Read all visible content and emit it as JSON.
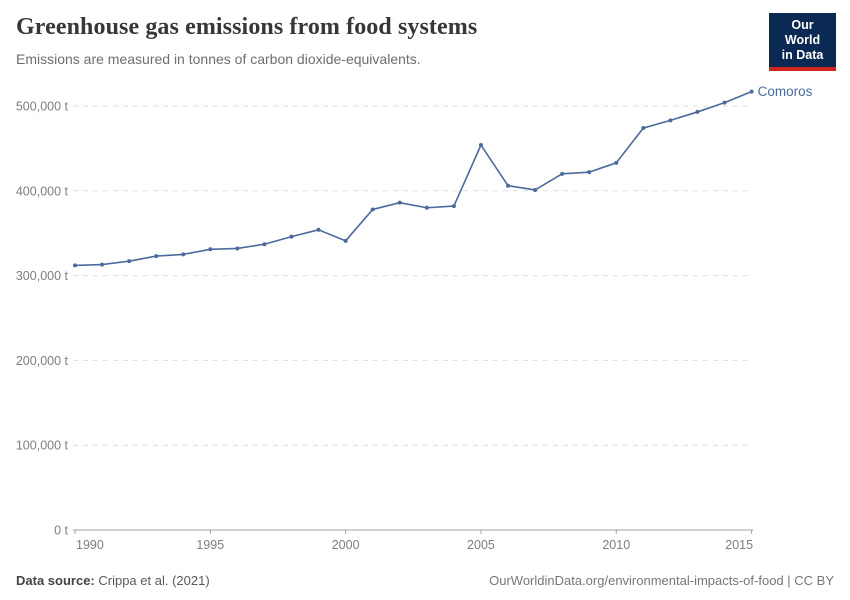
{
  "header": {
    "title": "Greenhouse gas emissions from food systems",
    "subtitle": "Emissions are measured in tonnes of carbon dioxide-equivalents.",
    "logo": {
      "line1": "Our World",
      "line2": "in Data",
      "bg_color": "#0A2953",
      "accent_color": "#CE261E"
    }
  },
  "chart_data": {
    "type": "line",
    "title": "Greenhouse gas emissions from food systems",
    "xlabel": "",
    "ylabel": "",
    "xlim": [
      1990,
      2015
    ],
    "ylim": [
      0,
      500000
    ],
    "grid": "horizontal-dashed",
    "legend_position": "end-of-line-label",
    "x_ticks": [
      1990,
      1995,
      2000,
      2005,
      2010,
      2015
    ],
    "x_tick_labels": [
      "1990",
      "1995",
      "2000",
      "2005",
      "2010",
      "2015"
    ],
    "y_ticks": [
      0,
      100000,
      200000,
      300000,
      400000,
      500000
    ],
    "y_tick_labels": [
      "0 t",
      "100,000 t",
      "200,000 t",
      "300,000 t",
      "400,000 t",
      "500,000 t"
    ],
    "series": [
      {
        "name": "Comoros",
        "color": "#4C6A9C",
        "x": [
          1990,
          1991,
          1992,
          1993,
          1994,
          1995,
          1996,
          1997,
          1998,
          1999,
          2000,
          2001,
          2002,
          2003,
          2004,
          2005,
          2006,
          2007,
          2008,
          2009,
          2010,
          2011,
          2012,
          2013,
          2014,
          2015
        ],
        "values": [
          312000,
          313000,
          317000,
          323000,
          325000,
          331000,
          332000,
          337000,
          346000,
          354000,
          341000,
          378000,
          386000,
          380000,
          382000,
          454000,
          406000,
          401000,
          420000,
          422000,
          433000,
          474000,
          483000,
          493000,
          504000,
          517000
        ]
      }
    ]
  },
  "footer": {
    "source_label": "Data source:",
    "source_value": " Crippa et al. (2021)",
    "credit": "OurWorldinData.org/environmental-impacts-of-food | CC BY"
  }
}
